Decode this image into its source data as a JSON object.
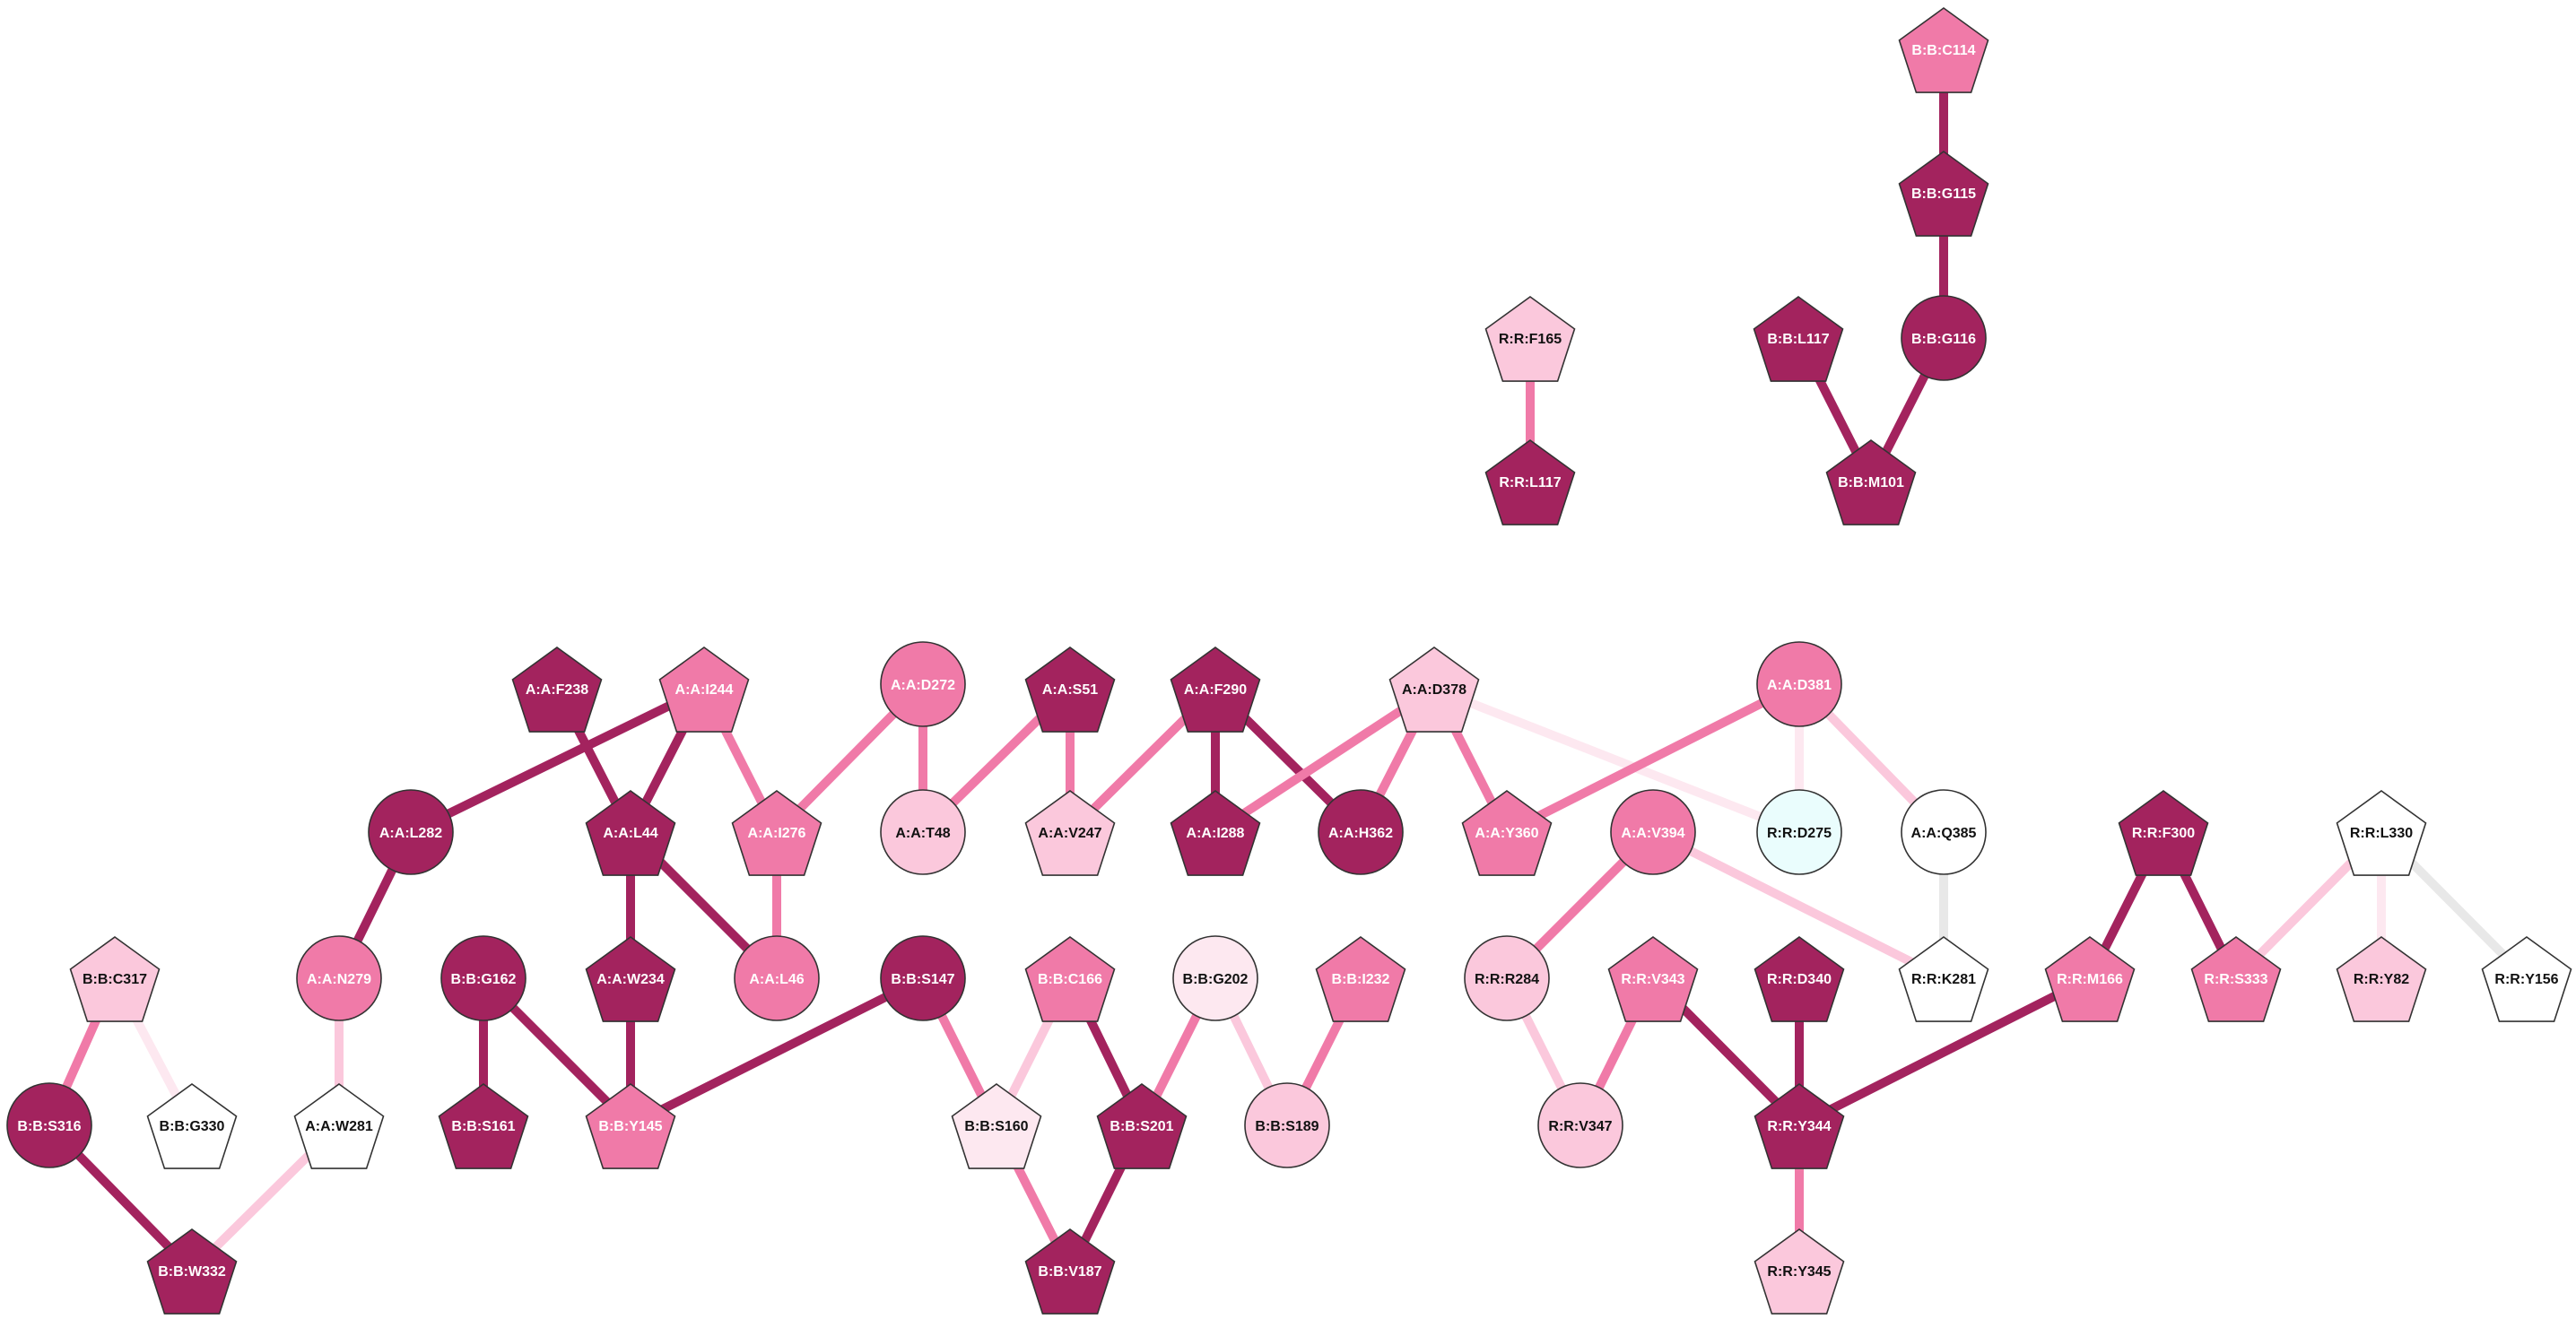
{
  "colors": {
    "dark": "#a3235e",
    "medium": "#f07aa8",
    "light": "#fbc8dc",
    "pale": "#fde8f0",
    "white": "#ffffff",
    "cyan": "#eafdfd",
    "edge_gray": "#e8e8e8",
    "node_stroke": "#333333",
    "label_light": "#ffffff",
    "label_dark": "#111111"
  },
  "nodes": [
    {
      "id": "B:B:C114",
      "shape": "pentagon",
      "fill": "medium"
    },
    {
      "id": "B:B:G115",
      "shape": "pentagon",
      "fill": "dark"
    },
    {
      "id": "B:B:G116",
      "shape": "circle",
      "fill": "dark"
    },
    {
      "id": "B:B:L117",
      "shape": "pentagon",
      "fill": "dark"
    },
    {
      "id": "B:B:M101",
      "shape": "pentagon",
      "fill": "dark"
    },
    {
      "id": "R:R:F165",
      "shape": "pentagon",
      "fill": "light"
    },
    {
      "id": "R:R:L117",
      "shape": "pentagon",
      "fill": "dark"
    },
    {
      "id": "A:A:F238",
      "shape": "pentagon",
      "fill": "dark"
    },
    {
      "id": "A:A:I244",
      "shape": "pentagon",
      "fill": "medium"
    },
    {
      "id": "A:A:D272",
      "shape": "circle",
      "fill": "medium"
    },
    {
      "id": "A:A:S51",
      "shape": "pentagon",
      "fill": "dark"
    },
    {
      "id": "A:A:F290",
      "shape": "pentagon",
      "fill": "dark"
    },
    {
      "id": "A:A:D378",
      "shape": "pentagon",
      "fill": "light"
    },
    {
      "id": "A:A:D381",
      "shape": "circle",
      "fill": "medium"
    },
    {
      "id": "A:A:L282",
      "shape": "circle",
      "fill": "dark"
    },
    {
      "id": "A:A:L44",
      "shape": "pentagon",
      "fill": "dark"
    },
    {
      "id": "A:A:I276",
      "shape": "pentagon",
      "fill": "medium"
    },
    {
      "id": "A:A:T48",
      "shape": "circle",
      "fill": "light"
    },
    {
      "id": "A:A:V247",
      "shape": "pentagon",
      "fill": "light"
    },
    {
      "id": "A:A:I288",
      "shape": "pentagon",
      "fill": "dark"
    },
    {
      "id": "A:A:H362",
      "shape": "circle",
      "fill": "dark"
    },
    {
      "id": "A:A:Y360",
      "shape": "pentagon",
      "fill": "medium"
    },
    {
      "id": "R:R:D275",
      "shape": "circle",
      "fill": "cyan"
    },
    {
      "id": "A:A:Q385",
      "shape": "circle",
      "fill": "white"
    },
    {
      "id": "A:A:V394",
      "shape": "circle",
      "fill": "medium"
    },
    {
      "id": "R:R:F300",
      "shape": "pentagon",
      "fill": "dark"
    },
    {
      "id": "R:R:L330",
      "shape": "pentagon",
      "fill": "white"
    },
    {
      "id": "B:B:C317",
      "shape": "pentagon",
      "fill": "light"
    },
    {
      "id": "A:A:N279",
      "shape": "circle",
      "fill": "medium"
    },
    {
      "id": "B:B:G162",
      "shape": "circle",
      "fill": "dark"
    },
    {
      "id": "A:A:W234",
      "shape": "pentagon",
      "fill": "dark"
    },
    {
      "id": "A:A:L46",
      "shape": "circle",
      "fill": "medium"
    },
    {
      "id": "B:B:S147",
      "shape": "circle",
      "fill": "dark"
    },
    {
      "id": "B:B:C166",
      "shape": "pentagon",
      "fill": "medium"
    },
    {
      "id": "B:B:G202",
      "shape": "circle",
      "fill": "pale"
    },
    {
      "id": "B:B:I232",
      "shape": "pentagon",
      "fill": "medium"
    },
    {
      "id": "R:R:R284",
      "shape": "circle",
      "fill": "light"
    },
    {
      "id": "R:R:V343",
      "shape": "pentagon",
      "fill": "medium"
    },
    {
      "id": "R:R:D340",
      "shape": "pentagon",
      "fill": "dark"
    },
    {
      "id": "R:R:K281",
      "shape": "pentagon",
      "fill": "white"
    },
    {
      "id": "R:R:M166",
      "shape": "pentagon",
      "fill": "medium"
    },
    {
      "id": "R:R:S333",
      "shape": "pentagon",
      "fill": "medium"
    },
    {
      "id": "R:R:Y82",
      "shape": "pentagon",
      "fill": "light"
    },
    {
      "id": "R:R:Y156",
      "shape": "pentagon",
      "fill": "white"
    },
    {
      "id": "B:B:S316",
      "shape": "circle",
      "fill": "dark"
    },
    {
      "id": "B:B:G330",
      "shape": "pentagon",
      "fill": "white"
    },
    {
      "id": "A:A:W281",
      "shape": "pentagon",
      "fill": "white"
    },
    {
      "id": "B:B:S161",
      "shape": "pentagon",
      "fill": "dark"
    },
    {
      "id": "B:B:Y145",
      "shape": "pentagon",
      "fill": "medium"
    },
    {
      "id": "B:B:S160",
      "shape": "pentagon",
      "fill": "pale"
    },
    {
      "id": "B:B:S201",
      "shape": "pentagon",
      "fill": "dark"
    },
    {
      "id": "B:B:S189",
      "shape": "circle",
      "fill": "light"
    },
    {
      "id": "R:R:V347",
      "shape": "circle",
      "fill": "light"
    },
    {
      "id": "R:R:Y344",
      "shape": "pentagon",
      "fill": "dark"
    },
    {
      "id": "B:B:W332",
      "shape": "pentagon",
      "fill": "dark"
    },
    {
      "id": "B:B:V187",
      "shape": "pentagon",
      "fill": "dark"
    },
    {
      "id": "R:R:Y345",
      "shape": "pentagon",
      "fill": "light"
    }
  ],
  "edges": [
    {
      "source": "B:B:C114",
      "target": "B:B:G115",
      "color": "dark",
      "weight": "thick"
    },
    {
      "source": "B:B:G115",
      "target": "B:B:G116",
      "color": "dark",
      "weight": "thick"
    },
    {
      "source": "B:B:G116",
      "target": "B:B:M101",
      "color": "dark",
      "weight": "thick"
    },
    {
      "source": "B:B:L117",
      "target": "B:B:M101",
      "color": "dark",
      "weight": "thick"
    },
    {
      "source": "R:R:F165",
      "target": "R:R:L117",
      "color": "medium",
      "weight": "thick"
    },
    {
      "source": "A:A:I244",
      "target": "A:A:L282",
      "color": "dark",
      "weight": "thick"
    },
    {
      "source": "A:A:F238",
      "target": "A:A:L44",
      "color": "dark",
      "weight": "thick"
    },
    {
      "source": "A:A:I244",
      "target": "A:A:L44",
      "color": "dark",
      "weight": "thick"
    },
    {
      "source": "A:A:I244",
      "target": "A:A:I276",
      "color": "medium",
      "weight": "thick"
    },
    {
      "source": "A:A:D272",
      "target": "A:A:I276",
      "color": "medium",
      "weight": "thick"
    },
    {
      "source": "A:A:D272",
      "target": "A:A:T48",
      "color": "medium",
      "weight": "thick"
    },
    {
      "source": "A:A:S51",
      "target": "A:A:T48",
      "color": "medium",
      "weight": "thick"
    },
    {
      "source": "A:A:S51",
      "target": "A:A:V247",
      "color": "medium",
      "weight": "thick"
    },
    {
      "source": "A:A:F290",
      "target": "A:A:V247",
      "color": "medium",
      "weight": "thick"
    },
    {
      "source": "A:A:F290",
      "target": "A:A:I288",
      "color": "dark",
      "weight": "thick"
    },
    {
      "source": "A:A:F290",
      "target": "A:A:H362",
      "color": "dark",
      "weight": "thick"
    },
    {
      "source": "A:A:D378",
      "target": "A:A:I288",
      "color": "medium",
      "weight": "thick"
    },
    {
      "source": "A:A:D378",
      "target": "A:A:H362",
      "color": "medium",
      "weight": "thick"
    },
    {
      "source": "A:A:D378",
      "target": "A:A:Y360",
      "color": "medium",
      "weight": "thick"
    },
    {
      "source": "A:A:D378",
      "target": "R:R:D275",
      "color": "pale",
      "weight": "thick"
    },
    {
      "source": "A:A:D381",
      "target": "A:A:Y360",
      "color": "medium",
      "weight": "thick"
    },
    {
      "source": "A:A:D381",
      "target": "R:R:D275",
      "color": "pale",
      "weight": "thick"
    },
    {
      "source": "A:A:D381",
      "target": "A:A:Q385",
      "color": "light",
      "weight": "thick"
    },
    {
      "source": "A:A:Q385",
      "target": "R:R:K281",
      "color": "edge_gray",
      "weight": "thick"
    },
    {
      "source": "A:A:V394",
      "target": "R:R:K281",
      "color": "light",
      "weight": "thick"
    },
    {
      "source": "A:A:V394",
      "target": "R:R:R284",
      "color": "medium",
      "weight": "thick"
    },
    {
      "source": "A:A:L282",
      "target": "A:A:N279",
      "color": "dark",
      "weight": "thick"
    },
    {
      "source": "A:A:L44",
      "target": "A:A:W234",
      "color": "dark",
      "weight": "thick"
    },
    {
      "source": "A:A:L44",
      "target": "A:A:L46",
      "color": "dark",
      "weight": "thick"
    },
    {
      "source": "A:A:I276",
      "target": "A:A:L46",
      "color": "medium",
      "weight": "thick"
    },
    {
      "source": "A:A:N279",
      "target": "A:A:W281",
      "color": "light",
      "weight": "thick"
    },
    {
      "source": "A:A:W281",
      "target": "B:B:W332",
      "color": "light",
      "weight": "thick"
    },
    {
      "source": "B:B:C317",
      "target": "B:B:S316",
      "color": "medium",
      "weight": "thick"
    },
    {
      "source": "B:B:C317",
      "target": "B:B:G330",
      "color": "pale",
      "weight": "thick"
    },
    {
      "source": "B:B:S316",
      "target": "B:B:W332",
      "color": "dark",
      "weight": "thick"
    },
    {
      "source": "B:B:G162",
      "target": "B:B:S161",
      "color": "dark",
      "weight": "thick"
    },
    {
      "source": "B:B:G162",
      "target": "B:B:Y145",
      "color": "dark",
      "weight": "thick"
    },
    {
      "source": "A:A:W234",
      "target": "B:B:Y145",
      "color": "dark",
      "weight": "thick"
    },
    {
      "source": "B:B:S147",
      "target": "B:B:Y145",
      "color": "dark",
      "weight": "thick"
    },
    {
      "source": "B:B:S147",
      "target": "B:B:S160",
      "color": "medium",
      "weight": "thick"
    },
    {
      "source": "B:B:C166",
      "target": "B:B:S160",
      "color": "light",
      "weight": "thick"
    },
    {
      "source": "B:B:C166",
      "target": "B:B:S201",
      "color": "dark",
      "weight": "thick"
    },
    {
      "source": "B:B:G202",
      "target": "B:B:S201",
      "color": "medium",
      "weight": "thick"
    },
    {
      "source": "B:B:G202",
      "target": "B:B:S189",
      "color": "light",
      "weight": "thick"
    },
    {
      "source": "B:B:I232",
      "target": "B:B:S189",
      "color": "medium",
      "weight": "thick"
    },
    {
      "source": "B:B:S160",
      "target": "B:B:V187",
      "color": "medium",
      "weight": "thick"
    },
    {
      "source": "B:B:S201",
      "target": "B:B:V187",
      "color": "dark",
      "weight": "thick"
    },
    {
      "source": "R:R:R284",
      "target": "R:R:V347",
      "color": "light",
      "weight": "thick"
    },
    {
      "source": "R:R:V343",
      "target": "R:R:V347",
      "color": "medium",
      "weight": "thick"
    },
    {
      "source": "R:R:V343",
      "target": "R:R:Y344",
      "color": "dark",
      "weight": "thick"
    },
    {
      "source": "R:R:D340",
      "target": "R:R:Y344",
      "color": "dark",
      "weight": "thick"
    },
    {
      "source": "R:R:M166",
      "target": "R:R:Y344",
      "color": "dark",
      "weight": "thick"
    },
    {
      "source": "R:R:Y344",
      "target": "R:R:Y345",
      "color": "medium",
      "weight": "thick"
    },
    {
      "source": "R:R:F300",
      "target": "R:R:M166",
      "color": "dark",
      "weight": "thick"
    },
    {
      "source": "R:R:F300",
      "target": "R:R:S333",
      "color": "dark",
      "weight": "thick"
    },
    {
      "source": "R:R:L330",
      "target": "R:R:S333",
      "color": "light",
      "weight": "thick"
    },
    {
      "source": "R:R:L330",
      "target": "R:R:Y82",
      "color": "pale",
      "weight": "thick"
    },
    {
      "source": "R:R:L330",
      "target": "R:R:Y156",
      "color": "edge_gray",
      "weight": "thick"
    }
  ]
}
